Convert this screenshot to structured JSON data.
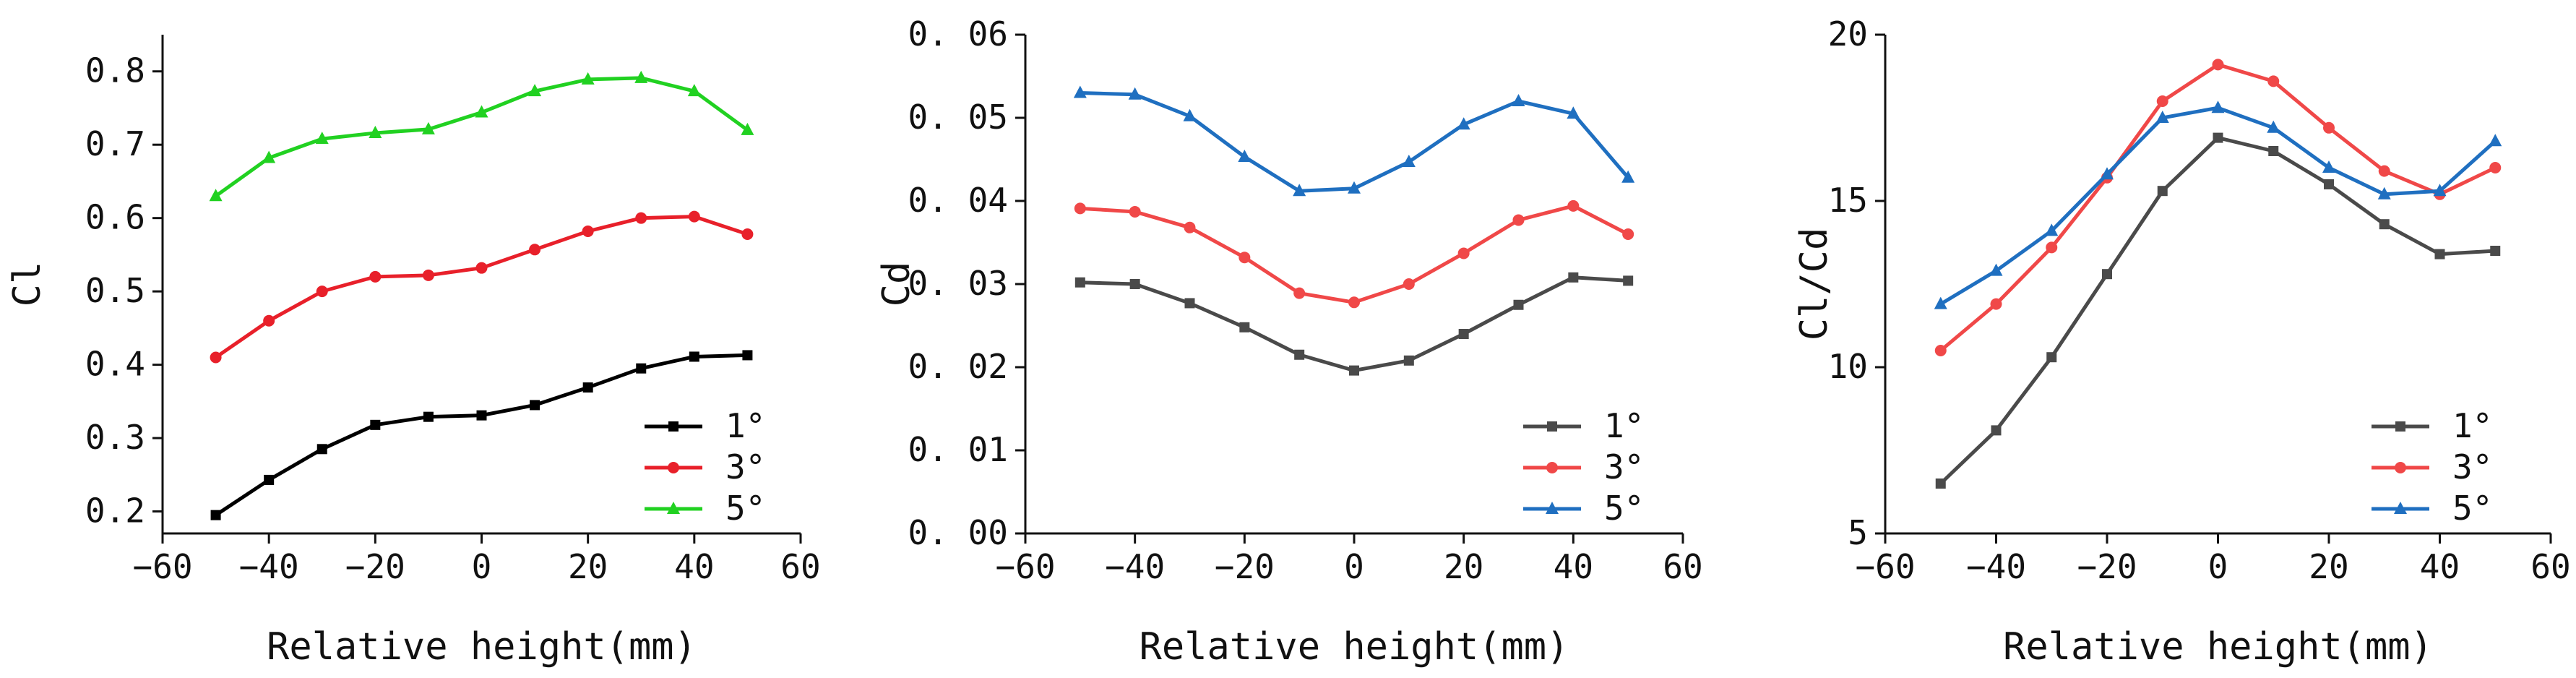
{
  "chart_data": [
    {
      "type": "line",
      "xlabel": "Relative height(mm)",
      "ylabel": "Cl",
      "xlim": [
        -60,
        60
      ],
      "ylim": [
        0.17,
        0.85
      ],
      "xticks": [
        -60,
        -40,
        -20,
        0,
        20,
        40,
        60
      ],
      "xtick_labels": [
        "−60",
        "−40",
        "−20",
        "0",
        "20",
        "40",
        "60"
      ],
      "yticks": [
        0.2,
        0.3,
        0.4,
        0.5,
        0.6,
        0.7,
        0.8
      ],
      "ytick_labels": [
        "0.2",
        "0.3",
        "0.4",
        "0.5",
        "0.6",
        "0.7",
        "0.8"
      ],
      "grid": false,
      "legend_position": "bottom-right",
      "x": [
        -50,
        -40,
        -30,
        -20,
        -10,
        0,
        10,
        20,
        30,
        40,
        50
      ],
      "series": [
        {
          "name": "1°",
          "color": "#000000",
          "marker": "square",
          "values": [
            0.195,
            0.243,
            0.285,
            0.318,
            0.329,
            0.331,
            0.345,
            0.369,
            0.395,
            0.411,
            0.413
          ]
        },
        {
          "name": "3°",
          "color": "#e8202a",
          "marker": "circle",
          "values": [
            0.41,
            0.46,
            0.5,
            0.52,
            0.522,
            0.532,
            0.557,
            0.582,
            0.6,
            0.602,
            0.578
          ]
        },
        {
          "name": "5°",
          "color": "#21d121",
          "marker": "triangle",
          "values": [
            0.63,
            0.682,
            0.708,
            0.716,
            0.721,
            0.744,
            0.773,
            0.789,
            0.791,
            0.773,
            0.72
          ]
        }
      ]
    },
    {
      "type": "line",
      "xlabel": "Relative height(mm)",
      "ylabel": "Cd",
      "xlim": [
        -60,
        60
      ],
      "ylim": [
        0,
        0.06
      ],
      "xticks": [
        -60,
        -40,
        -20,
        0,
        20,
        40,
        60
      ],
      "xtick_labels": [
        "−60",
        "−40",
        "−20",
        "0",
        "20",
        "40",
        "60"
      ],
      "yticks": [
        0,
        0.01,
        0.02,
        0.03,
        0.04,
        0.05,
        0.06
      ],
      "ytick_labels": [
        "0. 00",
        "0. 01",
        "0. 02",
        "0. 03",
        "0. 04",
        "0. 05",
        "0. 06"
      ],
      "grid": false,
      "legend_position": "bottom-right",
      "x": [
        -50,
        -40,
        -30,
        -20,
        -10,
        0,
        10,
        20,
        30,
        40,
        50
      ],
      "series": [
        {
          "name": "1°",
          "color": "#4a4a4a",
          "marker": "square",
          "values": [
            0.0302,
            0.03,
            0.0277,
            0.0248,
            0.0215,
            0.0196,
            0.0208,
            0.024,
            0.0275,
            0.0308,
            0.0304
          ]
        },
        {
          "name": "3°",
          "color": "#f04848",
          "marker": "circle",
          "values": [
            0.0391,
            0.0387,
            0.0368,
            0.0332,
            0.0289,
            0.0278,
            0.03,
            0.0337,
            0.0377,
            0.0394,
            0.036
          ]
        },
        {
          "name": "5°",
          "color": "#1f6fc0",
          "marker": "triangle",
          "values": [
            0.053,
            0.0528,
            0.0502,
            0.0453,
            0.0412,
            0.0415,
            0.0447,
            0.0492,
            0.052,
            0.0505,
            0.0428
          ]
        }
      ]
    },
    {
      "type": "line",
      "xlabel": "Relative height(mm)",
      "ylabel": "Cl/Cd",
      "xlim": [
        -60,
        60
      ],
      "ylim": [
        5,
        20
      ],
      "xticks": [
        -60,
        -40,
        -20,
        0,
        20,
        40,
        60
      ],
      "xtick_labels": [
        "−60",
        "−40",
        "−20",
        "0",
        "20",
        "40",
        "60"
      ],
      "yticks": [
        5,
        10,
        15,
        20
      ],
      "ytick_labels": [
        "5",
        "10",
        "15",
        "20"
      ],
      "grid": false,
      "legend_position": "bottom-right",
      "x": [
        -50,
        -40,
        -30,
        -20,
        -10,
        0,
        10,
        20,
        30,
        40,
        50
      ],
      "series": [
        {
          "name": "1°",
          "color": "#4a4a4a",
          "marker": "square",
          "values": [
            6.5,
            8.1,
            10.3,
            12.8,
            15.3,
            16.9,
            16.5,
            15.5,
            14.3,
            13.4,
            13.5
          ]
        },
        {
          "name": "3°",
          "color": "#f04848",
          "marker": "circle",
          "values": [
            10.5,
            11.9,
            13.6,
            15.7,
            18.0,
            19.1,
            18.6,
            17.2,
            15.9,
            15.2,
            16.0
          ]
        },
        {
          "name": "5°",
          "color": "#1f6fc0",
          "marker": "triangle",
          "values": [
            11.9,
            12.9,
            14.1,
            15.8,
            17.5,
            17.8,
            17.2,
            16.0,
            15.2,
            15.3,
            16.8
          ]
        }
      ]
    }
  ]
}
